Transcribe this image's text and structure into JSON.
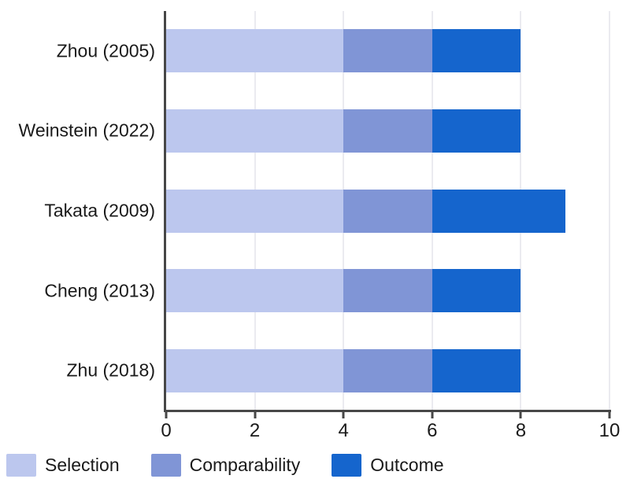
{
  "chart_data": {
    "type": "bar",
    "orientation": "horizontal",
    "stacked": true,
    "title": "",
    "xlabel": "",
    "ylabel": "",
    "categories": [
      "Zhou (2005)",
      "Weinstein (2022)",
      "Takata (2009)",
      "Cheng (2013)",
      "Zhu (2018)"
    ],
    "series": [
      {
        "name": "Selection",
        "color": "#bcc7ee",
        "values": [
          4,
          4,
          4,
          4,
          4
        ]
      },
      {
        "name": "Comparability",
        "color": "#8095d6",
        "values": [
          2,
          2,
          2,
          2,
          2
        ]
      },
      {
        "name": "Outcome",
        "color": "#1565cd",
        "values": [
          2,
          2,
          3,
          2,
          2
        ]
      }
    ],
    "totals": [
      8,
      8,
      9,
      8,
      8
    ],
    "xlim": [
      0,
      10
    ],
    "x_ticks": [
      0,
      2,
      4,
      6,
      8,
      10
    ],
    "grid": true,
    "legend_position": "bottom"
  },
  "colors": {
    "axis": "#474747",
    "gridline": "#ebebf0",
    "text": "#1a1a1a",
    "background": "#ffffff"
  }
}
